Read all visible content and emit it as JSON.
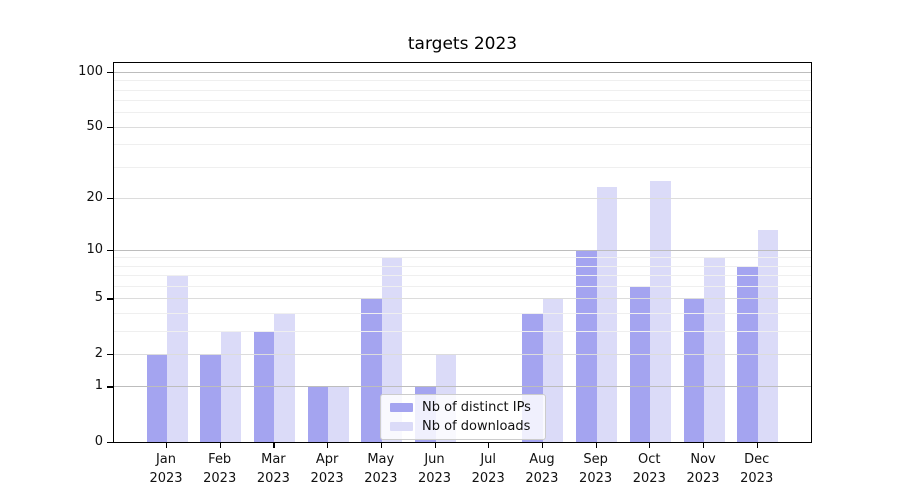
{
  "title": "targets 2023",
  "colors": {
    "ips_bar": "#a4a4f0",
    "downloads_bar": "#dbdbf8",
    "grid_strong": "#bdbdbd",
    "grid_mid": "#dcdcdc",
    "grid_minor": "#efefef",
    "axis": "#000000"
  },
  "legend": {
    "items": [
      {
        "label": "Nb of distinct IPs",
        "color_key": "ips_bar"
      },
      {
        "label": "Nb of downloads",
        "color_key": "downloads_bar"
      }
    ]
  },
  "chart_data": {
    "type": "bar",
    "title": "targets 2023",
    "categories": [
      "Jan 2023",
      "Feb 2023",
      "Mar 2023",
      "Apr 2023",
      "May 2023",
      "Jun 2023",
      "Jul 2023",
      "Aug 2023",
      "Sep 2023",
      "Oct 2023",
      "Nov 2023",
      "Dec 2023"
    ],
    "series": [
      {
        "name": "Nb of distinct IPs",
        "color": "#a4a4f0",
        "values": [
          2,
          2,
          3,
          1,
          5,
          1,
          0,
          4,
          10,
          6,
          5,
          8
        ]
      },
      {
        "name": "Nb of downloads",
        "color": "#dbdbf8",
        "values": [
          7,
          3,
          4,
          1,
          9,
          2,
          0,
          5,
          23,
          25,
          9,
          13
        ]
      }
    ],
    "yscale": "log1p",
    "yticks": [
      0,
      1,
      2,
      5,
      10,
      20,
      50,
      100
    ],
    "ylim": [
      0,
      112
    ],
    "grid": true,
    "legend_position": "lower center"
  }
}
